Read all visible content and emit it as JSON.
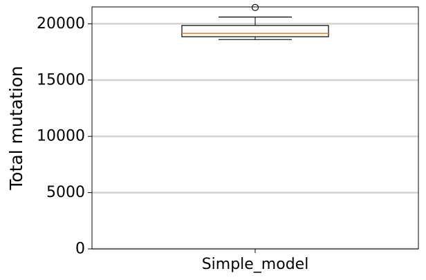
{
  "chart_data": {
    "type": "box",
    "title": "",
    "xlabel": "",
    "ylabel": "Total mutation",
    "ylim": [
      0,
      21500
    ],
    "yticks": [
      0,
      5000,
      10000,
      15000,
      20000
    ],
    "ytick_labels": [
      "0",
      "5000",
      "10000",
      "15000",
      "20000"
    ],
    "grid": "horizontal",
    "categories": [
      "Simple_model"
    ],
    "boxes": [
      {
        "category": "Simple_model",
        "whisker_low": 18600,
        "q1": 18850,
        "median": 19150,
        "q3": 19850,
        "whisker_high": 20600,
        "outliers": [
          21450
        ]
      }
    ],
    "colors": {
      "box": "#000000",
      "median": "#ff7f0e",
      "grid": "#d3d3d3"
    }
  }
}
